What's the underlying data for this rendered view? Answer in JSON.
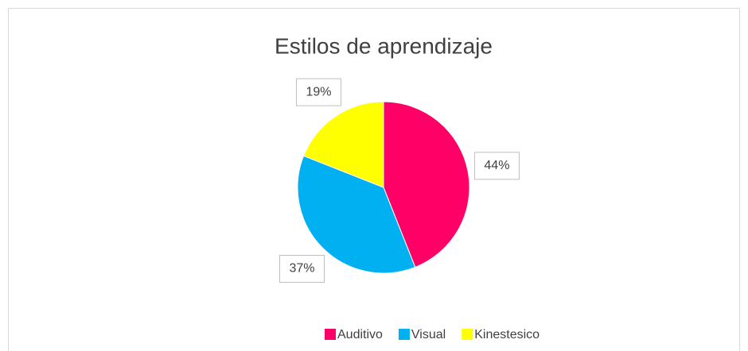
{
  "chart_data": {
    "type": "pie",
    "title": "Estilos de aprendizaje",
    "categories": [
      "Auditivo",
      "Visual",
      "Kinestesico"
    ],
    "values": [
      44,
      37,
      19
    ],
    "value_labels": [
      "44%",
      "37%",
      "19%"
    ],
    "colors": [
      "#ff0066",
      "#00b0f0",
      "#ffff00"
    ],
    "legend": "bottom"
  }
}
